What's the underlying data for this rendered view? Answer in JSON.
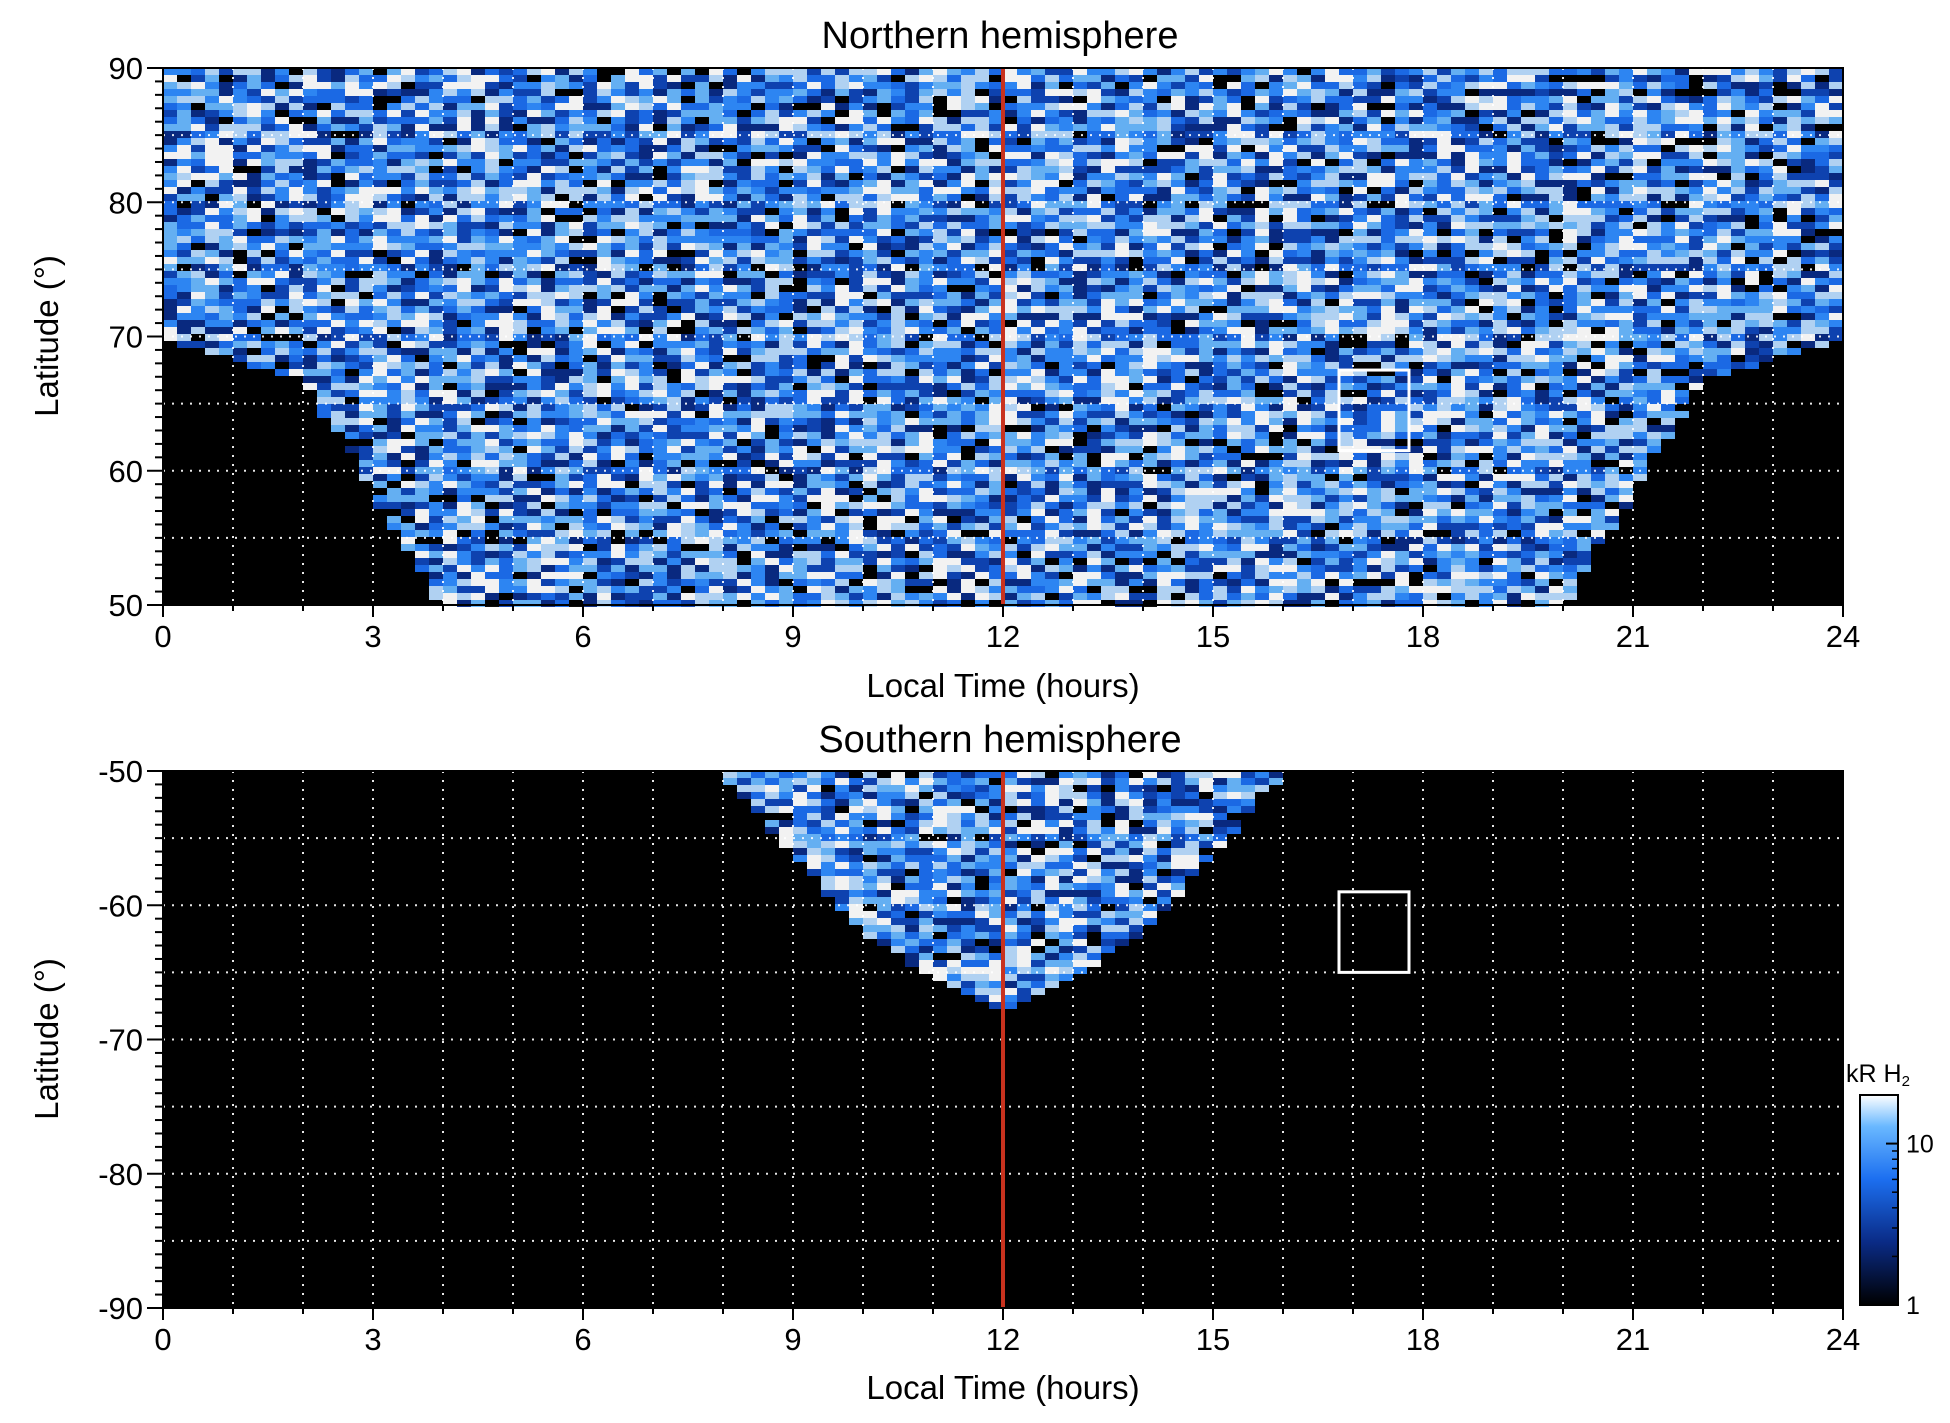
{
  "chart_data": [
    {
      "type": "heatmap",
      "title": "Northern hemisphere",
      "xlabel": "Local Time (hours)",
      "ylabel": "Latitude (°)",
      "xlim": [
        0,
        24
      ],
      "ylim": [
        50,
        90
      ],
      "xticks": [
        0,
        3,
        6,
        9,
        12,
        15,
        18,
        21,
        24
      ],
      "yticks": [
        50,
        60,
        70,
        80,
        90
      ],
      "grid": true,
      "grid_x_step": 1,
      "grid_y_step": 5,
      "vertical_line": {
        "x": 12,
        "color": "#c8321e"
      },
      "box": {
        "x0": 16.8,
        "x1": 17.8,
        "y0": 61.5,
        "y1": 67.5
      },
      "coverage_edge": [
        [
          0,
          70
        ],
        [
          2,
          67
        ],
        [
          4,
          50
        ],
        [
          20,
          50
        ],
        [
          22,
          67
        ],
        [
          24,
          70
        ]
      ]
    },
    {
      "type": "heatmap",
      "title": "Southern hemisphere",
      "xlabel": "Local Time (hours)",
      "ylabel": "Latitude (°)",
      "xlim": [
        0,
        24
      ],
      "ylim": [
        -90,
        -50
      ],
      "xticks": [
        0,
        3,
        6,
        9,
        12,
        15,
        18,
        21,
        24
      ],
      "yticks": [
        -90,
        -80,
        -70,
        -60,
        -50
      ],
      "grid": true,
      "grid_x_step": 1,
      "grid_y_step": 5,
      "vertical_line": {
        "x": 12,
        "color": "#c8321e"
      },
      "box": {
        "x0": 16.8,
        "x1": 17.8,
        "y0": -65,
        "y1": -59
      },
      "coverage_edge": [
        [
          8,
          -50
        ],
        [
          10,
          -62
        ],
        [
          12,
          -68
        ],
        [
          14,
          -62
        ],
        [
          16,
          -50
        ]
      ]
    }
  ],
  "colorbar": {
    "label_main": "kR H",
    "label_sub": "2",
    "scale": "log",
    "range": [
      1,
      20
    ],
    "ticks": [
      1,
      10
    ],
    "colors": [
      "#000000",
      "#0a2b86",
      "#1c6ff0",
      "#69b8ff",
      "#ffffff"
    ]
  }
}
